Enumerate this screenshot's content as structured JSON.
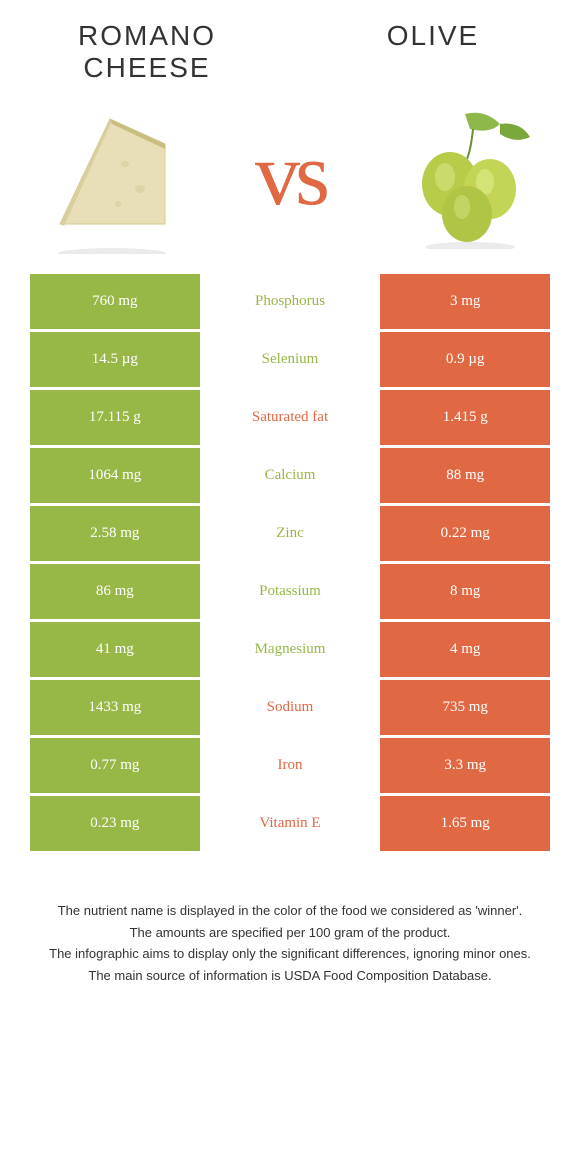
{
  "titles": {
    "left": "Romano cheese",
    "right": "Olive"
  },
  "vs": "vs",
  "colors": {
    "green": "#97b847",
    "orange": "#e06843",
    "green_dark": "#8bad3e",
    "orange_dark": "#d55e3a",
    "text_white": "#ffffff",
    "bg": "#ffffff"
  },
  "rows": [
    {
      "left": "760 mg",
      "label": "Phosphorus",
      "right": "3 mg",
      "winner": "left"
    },
    {
      "left": "14.5 µg",
      "label": "Selenium",
      "right": "0.9 µg",
      "winner": "left"
    },
    {
      "left": "17.115 g",
      "label": "Saturated fat",
      "right": "1.415 g",
      "winner": "right"
    },
    {
      "left": "1064 mg",
      "label": "Calcium",
      "right": "88 mg",
      "winner": "left"
    },
    {
      "left": "2.58 mg",
      "label": "Zinc",
      "right": "0.22 mg",
      "winner": "left"
    },
    {
      "left": "86 mg",
      "label": "Potassium",
      "right": "8 mg",
      "winner": "left"
    },
    {
      "left": "41 mg",
      "label": "Magnesium",
      "right": "4 mg",
      "winner": "left"
    },
    {
      "left": "1433 mg",
      "label": "Sodium",
      "right": "735 mg",
      "winner": "right"
    },
    {
      "left": "0.77 mg",
      "label": "Iron",
      "right": "3.3 mg",
      "winner": "right"
    },
    {
      "left": "0.23 mg",
      "label": "Vitamin E",
      "right": "1.65 mg",
      "winner": "right"
    }
  ],
  "footnotes": [
    "The nutrient name is displayed in the color of the food we considered as 'winner'.",
    "The amounts are specified per 100 gram of the product.",
    "The infographic aims to display only the significant differences, ignoring minor ones.",
    "The main source of information is USDA Food Composition Database."
  ]
}
